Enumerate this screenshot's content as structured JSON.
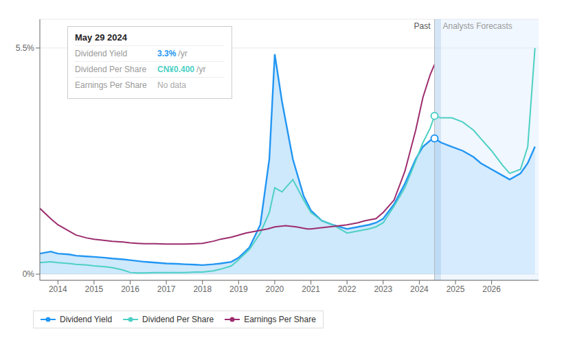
{
  "chart_data": {
    "type": "line",
    "xlim": [
      2013.5,
      2027.3
    ],
    "xticks": [
      2014,
      2015,
      2016,
      2017,
      2018,
      2019,
      2020,
      2021,
      2022,
      2023,
      2024,
      2025,
      2026
    ],
    "ylim": [
      -0.15,
      6.2
    ],
    "yticks": [
      {
        "value": 0,
        "label": "0%"
      },
      {
        "value": 5.5,
        "label": "5.5%"
      }
    ],
    "grid": true,
    "legend": "lower left",
    "past_divider": 2024.42,
    "forecast_start": 2024.6,
    "annotations": [
      "Past",
      "Analysts Forecasts"
    ],
    "series": [
      {
        "name": "Dividend Yield",
        "type": "area",
        "color": "#2196f3",
        "x": [
          2013.5,
          2013.8,
          2014.0,
          2014.3,
          2014.5,
          2014.8,
          2015.0,
          2015.3,
          2015.5,
          2015.8,
          2016.0,
          2016.2,
          2016.4,
          2016.7,
          2017.0,
          2017.3,
          2017.5,
          2017.8,
          2018.0,
          2018.3,
          2018.5,
          2018.8,
          2019.0,
          2019.3,
          2019.6,
          2019.85,
          2020.0,
          2020.2,
          2020.5,
          2020.8,
          2021.0,
          2021.3,
          2021.6,
          2021.8,
          2022.0,
          2022.3,
          2022.6,
          2022.8,
          2023.0,
          2023.3,
          2023.6,
          2023.9,
          2024.1,
          2024.3,
          2024.42
        ],
        "values": [
          0.5,
          0.55,
          0.5,
          0.48,
          0.45,
          0.43,
          0.42,
          0.4,
          0.38,
          0.36,
          0.34,
          0.32,
          0.3,
          0.28,
          0.26,
          0.25,
          0.24,
          0.23,
          0.22,
          0.24,
          0.26,
          0.3,
          0.4,
          0.65,
          1.2,
          2.8,
          5.35,
          4.2,
          2.8,
          1.9,
          1.55,
          1.3,
          1.2,
          1.15,
          1.1,
          1.15,
          1.2,
          1.25,
          1.35,
          1.7,
          2.2,
          2.8,
          3.1,
          3.25,
          3.3
        ],
        "forecast_x": [
          2024.42,
          2024.6,
          2024.9,
          2025.2,
          2025.5,
          2025.7,
          2026.0,
          2026.3,
          2026.5,
          2026.8,
          2027.0,
          2027.2
        ],
        "forecast_values": [
          3.3,
          3.2,
          3.1,
          3.0,
          2.85,
          2.7,
          2.55,
          2.4,
          2.3,
          2.45,
          2.7,
          3.1
        ]
      },
      {
        "name": "Dividend Per Share",
        "type": "line",
        "color": "#4dd0c4",
        "x": [
          2013.5,
          2013.8,
          2014.0,
          2014.3,
          2014.5,
          2014.8,
          2015.0,
          2015.3,
          2015.5,
          2015.8,
          2016.0,
          2016.2,
          2016.4,
          2016.7,
          2017.0,
          2017.3,
          2017.5,
          2017.8,
          2018.0,
          2018.3,
          2018.5,
          2018.8,
          2019.0,
          2019.3,
          2019.6,
          2019.85,
          2020.0,
          2020.2,
          2020.5,
          2020.8,
          2021.0,
          2021.3,
          2021.6,
          2021.8,
          2022.0,
          2022.3,
          2022.6,
          2022.8,
          2023.0,
          2023.3,
          2023.6,
          2023.9,
          2024.1,
          2024.3,
          2024.42
        ],
        "values": [
          0.28,
          0.3,
          0.28,
          0.26,
          0.24,
          0.22,
          0.2,
          0.18,
          0.16,
          0.1,
          0.04,
          0.03,
          0.03,
          0.04,
          0.04,
          0.04,
          0.04,
          0.05,
          0.05,
          0.08,
          0.12,
          0.2,
          0.35,
          0.6,
          1.0,
          1.5,
          2.1,
          2.0,
          2.3,
          1.8,
          1.5,
          1.3,
          1.2,
          1.1,
          1.0,
          1.05,
          1.1,
          1.15,
          1.25,
          1.65,
          2.1,
          2.75,
          3.2,
          3.55,
          3.85
        ],
        "forecast_x": [
          2024.42,
          2024.6,
          2024.9,
          2025.2,
          2025.5,
          2025.7,
          2026.0,
          2026.3,
          2026.5,
          2026.8,
          2027.0,
          2027.2
        ],
        "forecast_values": [
          3.85,
          3.8,
          3.8,
          3.7,
          3.5,
          3.3,
          3.0,
          2.65,
          2.45,
          2.55,
          3.1,
          5.5
        ]
      },
      {
        "name": "Earnings Per Share",
        "type": "line",
        "color": "#9c2c6e",
        "x": [
          2013.5,
          2013.8,
          2014.0,
          2014.3,
          2014.5,
          2014.8,
          2015.0,
          2015.3,
          2015.5,
          2015.8,
          2016.0,
          2016.2,
          2016.4,
          2016.7,
          2017.0,
          2017.3,
          2017.5,
          2017.8,
          2018.0,
          2018.3,
          2018.5,
          2018.8,
          2019.0,
          2019.2,
          2019.5,
          2019.8,
          2020.0,
          2020.3,
          2020.6,
          2020.9,
          2021.0,
          2021.2,
          2021.5,
          2021.8,
          2022.0,
          2022.3,
          2022.5,
          2022.8,
          2023.0,
          2023.3,
          2023.6,
          2023.9,
          2024.1,
          2024.3,
          2024.42
        ],
        "values": [
          1.6,
          1.35,
          1.2,
          1.05,
          0.95,
          0.88,
          0.85,
          0.82,
          0.8,
          0.78,
          0.76,
          0.75,
          0.74,
          0.74,
          0.73,
          0.73,
          0.73,
          0.74,
          0.75,
          0.8,
          0.85,
          0.9,
          0.95,
          1.0,
          1.05,
          1.1,
          1.15,
          1.18,
          1.15,
          1.1,
          1.1,
          1.12,
          1.15,
          1.18,
          1.2,
          1.25,
          1.3,
          1.35,
          1.5,
          1.8,
          2.5,
          3.5,
          4.3,
          4.85,
          5.1
        ]
      }
    ],
    "highlight_points": [
      {
        "x": 2024.42,
        "y": 3.3,
        "series": "Dividend Yield"
      },
      {
        "x": 2024.42,
        "y": 3.85,
        "series": "Dividend Per Share"
      }
    ],
    "tooltip": {
      "title": "May 29 2024",
      "rows": [
        {
          "label": "Dividend Yield",
          "value": 3.3,
          "value_label": "3.3%",
          "suffix": "/yr"
        },
        {
          "label": "Dividend Per Share",
          "value": 0.4,
          "value_label": "CN¥0.400",
          "suffix": "/yr"
        },
        {
          "label": "Earnings Per Share",
          "value": null,
          "value_label": "No data"
        }
      ]
    }
  }
}
